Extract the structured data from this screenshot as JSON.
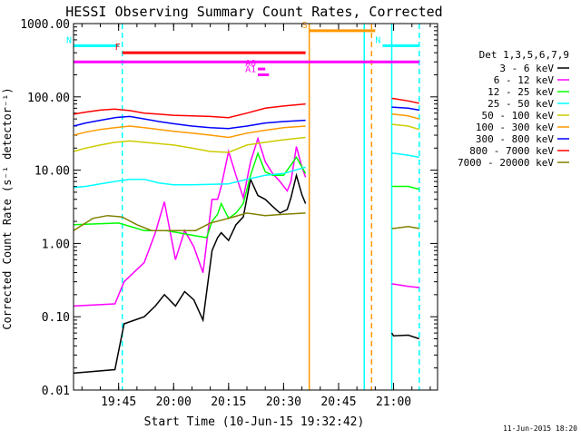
{
  "chart_data": {
    "type": "line",
    "title": "HESSI Observing Summary Count Rates, Corrected",
    "xlabel": "Start Time (10-Jun-15 19:32:42)",
    "ylabel": "Corrected Count Rate (s⁻¹ detector⁻¹)",
    "y_scale": "log",
    "ylim": [
      0.01,
      1000
    ],
    "y_ticks": [
      {
        "value": 0.01,
        "label": "0.01"
      },
      {
        "value": 0.1,
        "label": "0.10"
      },
      {
        "value": 1,
        "label": "1.00"
      },
      {
        "value": 10,
        "label": "10.00"
      },
      {
        "value": 100,
        "label": "100.00"
      },
      {
        "value": 1000,
        "label": "1000.00"
      }
    ],
    "xlim": [
      "19:32:42",
      "21:12:00"
    ],
    "x_ticks": [
      "19:45",
      "20:00",
      "20:15",
      "20:30",
      "20:45",
      "21:00"
    ],
    "grid": false,
    "legend_position": "right",
    "legend_title": "Det 1,3,5,6,7,9",
    "timestamp": "11-Jun-2015 18:20",
    "series": [
      {
        "name": "3 - 6 keV",
        "color": "#000000",
        "x": [
          "19:32:42",
          "19:44:00",
          "19:46:30",
          "19:52:00",
          "19:55:00",
          "19:57:30",
          "20:00:30",
          "20:03:00",
          "20:05:30",
          "20:08:00",
          "20:10:30",
          "20:12:00",
          "20:13:00",
          "20:15:00",
          "20:17:00",
          "20:19:00",
          "20:21:00",
          "20:23:00",
          "20:25:00",
          "20:27:00",
          "20:29:00",
          "20:31:00",
          "20:32:00",
          "20:33:30",
          "20:35:00",
          "20:36:00",
          null,
          "20:59:30",
          "21:00:00",
          "21:04:00",
          "21:07:00"
        ],
        "y": [
          0.017,
          0.019,
          0.08,
          0.1,
          0.14,
          0.2,
          0.14,
          0.22,
          0.17,
          0.09,
          0.8,
          1.2,
          1.4,
          1.1,
          1.8,
          2.3,
          7.5,
          4.5,
          4,
          3.2,
          2.6,
          2.9,
          4.2,
          8.5,
          4.6,
          3.5,
          null,
          0.06,
          0.055,
          0.056,
          0.05
        ]
      },
      {
        "name": "6 - 12 keV",
        "color": "#ff00ff",
        "x": [
          "19:32:42",
          "19:44:00",
          "19:46:30",
          "19:52:00",
          "19:55:00",
          "19:57:30",
          "20:00:30",
          "20:03:00",
          "20:05:30",
          "20:08:00",
          "20:10:30",
          "20:12:00",
          "20:13:00",
          "20:15:00",
          "20:17:00",
          "20:19:00",
          "20:21:00",
          "20:23:00",
          "20:25:00",
          "20:27:00",
          "20:29:00",
          "20:31:00",
          "20:32:00",
          "20:33:30",
          "20:35:00",
          "20:36:00",
          null,
          "20:59:30",
          "21:00:00",
          "21:04:00",
          "21:07:00"
        ],
        "y": [
          0.14,
          0.15,
          0.3,
          0.55,
          1.4,
          3.7,
          0.6,
          1.5,
          0.9,
          0.4,
          4,
          4,
          6,
          18,
          8.5,
          4.2,
          13,
          27,
          13,
          9,
          7,
          5.2,
          7,
          21,
          11,
          8,
          null,
          0.28,
          0.28,
          0.26,
          0.25
        ]
      },
      {
        "name": "12 - 25 keV",
        "color": "#00ff00",
        "x": [
          "19:32:42",
          "19:45:00",
          "19:52:00",
          "19:58:00",
          "20:05:00",
          "20:09:00",
          "20:10:30",
          "20:12:00",
          "20:13:00",
          "20:15:00",
          "20:17:00",
          "20:19:00",
          "20:21:00",
          "20:23:00",
          "20:25:00",
          "20:27:00",
          "20:30:00",
          "20:33:30",
          "20:36:00",
          null,
          "20:59:30",
          "21:00:00",
          "21:04:00",
          "21:07:00"
        ],
        "y": [
          1.8,
          1.9,
          1.5,
          1.5,
          1.3,
          1.2,
          2,
          2.5,
          3.5,
          2.2,
          2.6,
          3.5,
          8.5,
          17,
          9.5,
          8.5,
          8.5,
          15,
          9,
          null,
          6,
          6,
          6,
          5.5
        ]
      },
      {
        "name": "25 - 50 keV",
        "color": "#00ffff",
        "x": [
          "19:32:42",
          "19:36:00",
          "19:40:00",
          "19:44:00",
          "19:48:00",
          "19:52:00",
          "19:56:00",
          "20:00:00",
          "20:05:00",
          "20:10:00",
          "20:15:00",
          "20:20:00",
          "20:25:00",
          "20:30:00",
          "20:36:00",
          null,
          "20:59:30",
          "21:00:00",
          "21:04:00",
          "21:07:00"
        ],
        "y": [
          5.8,
          6,
          6.5,
          7,
          7.5,
          7.5,
          6.7,
          6.3,
          6.3,
          6.4,
          6.5,
          7.5,
          8.5,
          9,
          11,
          null,
          17,
          17,
          16,
          15
        ]
      },
      {
        "name": "50 - 100 keV",
        "color": "#cccc00",
        "x": [
          "19:32:42",
          "19:36:00",
          "19:40:00",
          "19:44:00",
          "19:48:00",
          "19:52:00",
          "19:56:00",
          "20:00:00",
          "20:05:00",
          "20:10:00",
          "20:15:00",
          "20:20:00",
          "20:25:00",
          "20:30:00",
          "20:36:00",
          null,
          "20:59:30",
          "21:00:00",
          "21:04:00",
          "21:07:00"
        ],
        "y": [
          18,
          20,
          22,
          24,
          25,
          24,
          23,
          22,
          20,
          18,
          17.5,
          22,
          24,
          26,
          28,
          null,
          42,
          42,
          40,
          36
        ]
      },
      {
        "name": "100 - 300 keV",
        "color": "#ff9900",
        "x": [
          "19:32:42",
          "19:36:00",
          "19:40:00",
          "19:44:00",
          "19:48:00",
          "19:52:00",
          "19:56:00",
          "20:00:00",
          "20:05:00",
          "20:10:00",
          "20:15:00",
          "20:20:00",
          "20:25:00",
          "20:30:00",
          "20:36:00",
          null,
          "20:59:30",
          "21:00:00",
          "21:04:00",
          "21:07:00"
        ],
        "y": [
          30,
          33,
          36,
          38,
          40,
          38,
          36,
          34,
          32,
          30,
          28,
          32,
          35,
          38,
          40,
          null,
          58,
          58,
          55,
          50
        ]
      },
      {
        "name": "300 - 800 keV",
        "color": "#0000ff",
        "x": [
          "19:32:42",
          "19:36:00",
          "19:40:00",
          "19:44:00",
          "19:48:00",
          "19:52:00",
          "19:56:00",
          "20:00:00",
          "20:05:00",
          "20:10:00",
          "20:15:00",
          "20:20:00",
          "20:25:00",
          "20:30:00",
          "20:36:00",
          null,
          "20:59:30",
          "21:00:00",
          "21:04:00",
          "21:07:00"
        ],
        "y": [
          40,
          44,
          48,
          52,
          54,
          50,
          46,
          43,
          40,
          38,
          37,
          40,
          44,
          46,
          48,
          null,
          72,
          72,
          70,
          66
        ]
      },
      {
        "name": "800 - 7000 keV",
        "color": "#ff0000",
        "x": [
          "19:32:42",
          "19:36:00",
          "19:40:00",
          "19:44:00",
          "19:48:00",
          "19:52:00",
          "19:56:00",
          "20:00:00",
          "20:05:00",
          "20:10:00",
          "20:15:00",
          "20:20:00",
          "20:25:00",
          "20:30:00",
          "20:36:00",
          null,
          "20:59:30",
          "21:00:00",
          "21:04:00",
          "21:07:00"
        ],
        "y": [
          58,
          62,
          66,
          68,
          65,
          60,
          58,
          56,
          55,
          54,
          52,
          60,
          70,
          75,
          80,
          null,
          95,
          95,
          88,
          82
        ]
      },
      {
        "name": "7000 - 20000 keV",
        "color": "#808000",
        "x": [
          "19:32:42",
          "19:38:00",
          "19:42:00",
          "19:46:00",
          "19:50:00",
          "19:54:00",
          "20:00:00",
          "20:06:00",
          "20:10:00",
          "20:15:00",
          "20:20:00",
          "20:25:00",
          "20:30:00",
          "20:36:00",
          null,
          "20:59:30",
          "21:00:00",
          "21:04:00",
          "21:07:00"
        ],
        "y": [
          1.5,
          2.2,
          2.4,
          2.3,
          1.8,
          1.5,
          1.5,
          1.5,
          1.9,
          2.2,
          2.6,
          2.4,
          2.5,
          2.6,
          null,
          1.6,
          1.6,
          1.7,
          1.6
        ]
      }
    ],
    "flag_bars": [
      {
        "label": "N",
        "color": "#00ffff",
        "start": "19:32:42",
        "end": "19:45:00",
        "value": 500
      },
      {
        "label": "N",
        "color": "#00ffff",
        "start": "20:57:00",
        "end": "21:07:00",
        "value": 500
      },
      {
        "label": "F",
        "color": "#ff0000",
        "start": "19:46:00",
        "end": "20:36:00",
        "value": 400
      },
      {
        "label": "S",
        "color": "#ff9900",
        "start": "20:37:00",
        "end": "20:55:00",
        "value": 800
      },
      {
        "label": "",
        "color": "#ff00ff",
        "start": "19:32:42",
        "end": "21:07:00",
        "value": 300
      },
      {
        "label": "A0",
        "color": "#ff00ff",
        "start": "20:23:00",
        "end": "20:25:00",
        "value": 240
      },
      {
        "label": "A1",
        "color": "#ff00ff",
        "start": "20:23:00",
        "end": "20:26:00",
        "value": 200
      }
    ],
    "vertical_markers": [
      {
        "time": "19:46:00",
        "color": "#00ffff",
        "style": "dashed"
      },
      {
        "time": "20:37:00",
        "color": "#ff9900",
        "style": "solid"
      },
      {
        "time": "20:54:00",
        "color": "#ff9900",
        "style": "dashed"
      },
      {
        "time": "20:52:00",
        "color": "#00ffff",
        "style": "solid"
      },
      {
        "time": "20:59:30",
        "color": "#00ffff",
        "style": "solid"
      },
      {
        "time": "21:07:00",
        "color": "#00ffff",
        "style": "dashed"
      }
    ]
  }
}
